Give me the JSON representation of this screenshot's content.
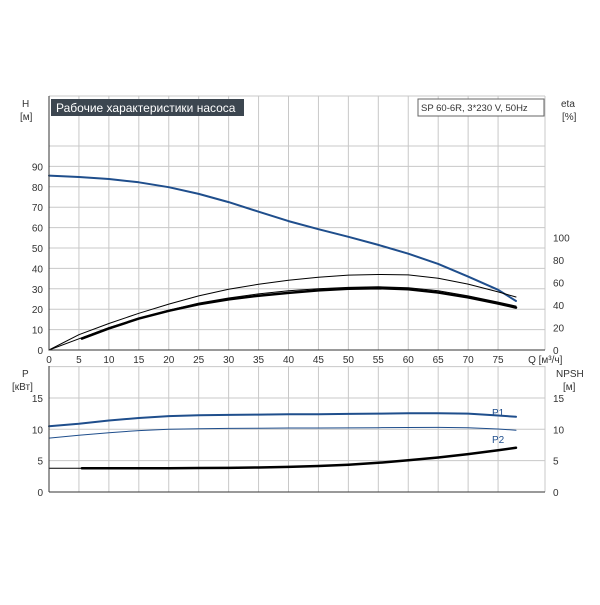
{
  "chart_data": {
    "type": "line",
    "title": "Рабочие характеристики насоса",
    "subtitle": "SP 60-6R, 3*230 V, 50Hz",
    "grid": true,
    "colors": {
      "blue": "#1f4e8c",
      "black": "#000000",
      "title_bg": "#3c4650"
    },
    "top_panel": {
      "ylabel_left": [
        "H",
        "[м]"
      ],
      "ylabel_right": [
        "eta",
        "[%]"
      ],
      "xlabel": "Q [м³/ч]",
      "xlim": [
        0,
        80
      ],
      "x_ticks": [
        "0",
        "5",
        "10",
        "15",
        "20",
        "25",
        "30",
        "35",
        "40",
        "45",
        "50",
        "55",
        "60",
        "65",
        "70",
        "75"
      ],
      "ylim": [
        0,
        100
      ],
      "y_ticks_left": [
        "0",
        "10",
        "20",
        "30",
        "40",
        "50",
        "60",
        "70",
        "80",
        "90"
      ],
      "y_ticks_right": [
        "0",
        "20",
        "40",
        "60",
        "80",
        "100"
      ],
      "series": [
        {
          "color": "blue",
          "width": 2,
          "x": [
            0,
            5,
            10,
            15,
            20,
            25,
            30,
            35,
            40,
            45,
            50,
            55,
            60,
            65,
            70,
            75,
            78
          ],
          "y": [
            85.5,
            84.8,
            83.8,
            82.2,
            79.8,
            76.5,
            72.5,
            67.8,
            63.2,
            59.2,
            55.5,
            51.5,
            47.2,
            42.2,
            36,
            29.5,
            24
          ]
        },
        {
          "color": "black",
          "width": 1,
          "x": [
            0,
            5,
            10,
            15,
            20,
            25,
            30,
            35,
            40,
            45,
            50,
            55,
            60,
            65,
            70,
            75,
            78
          ],
          "y": [
            0,
            7.5,
            13,
            18,
            22.5,
            26.5,
            29.8,
            32.2,
            34.2,
            35.7,
            36.7,
            37,
            36.8,
            35.2,
            32.3,
            28.5,
            26
          ]
        },
        {
          "color": "black",
          "width": 2.5,
          "x": [
            5.5,
            10,
            15,
            20,
            25,
            30,
            35,
            40,
            45,
            50,
            55,
            60,
            65,
            70,
            75,
            78
          ],
          "y": [
            5.6,
            10.6,
            15.4,
            19.2,
            22.4,
            24.8,
            26.6,
            28,
            29.2,
            30,
            30.3,
            29.8,
            28.2,
            25.8,
            22.8,
            20.8
          ]
        },
        {
          "color": "black",
          "width": 1,
          "x": [
            0,
            5,
            10,
            15,
            20,
            25,
            30,
            35,
            40,
            45,
            50,
            55,
            60,
            65,
            70,
            75,
            78
          ],
          "y": [
            0,
            5.5,
            11,
            15.5,
            19.5,
            23,
            25.5,
            27.5,
            29,
            30,
            30.7,
            31,
            30.5,
            29,
            26.5,
            23.5,
            21.5
          ]
        }
      ]
    },
    "bottom_panel": {
      "ylabel_left": [
        "P",
        "[кВт]"
      ],
      "ylabel_right": [
        "NPSH",
        "[м]"
      ],
      "ylim": [
        0,
        20
      ],
      "y_ticks_left": [
        "0",
        "5",
        "10",
        "15"
      ],
      "y_ticks_right": [
        "0",
        "5",
        "10",
        "15"
      ],
      "series": [
        {
          "name": "P1",
          "color": "blue",
          "width": 2,
          "x": [
            0,
            5,
            10,
            15,
            20,
            25,
            30,
            35,
            40,
            45,
            50,
            55,
            60,
            65,
            70,
            75,
            78
          ],
          "y": [
            10.5,
            10.9,
            11.4,
            11.8,
            12.1,
            12.25,
            12.3,
            12.35,
            12.4,
            12.4,
            12.45,
            12.5,
            12.55,
            12.55,
            12.5,
            12.2,
            12
          ]
        },
        {
          "name": "P2",
          "color": "blue",
          "width": 1,
          "x": [
            0,
            5,
            10,
            15,
            20,
            25,
            30,
            35,
            40,
            45,
            50,
            55,
            60,
            65,
            70,
            75,
            78
          ],
          "y": [
            8.6,
            9.05,
            9.45,
            9.8,
            10,
            10.1,
            10.15,
            10.18,
            10.2,
            10.2,
            10.22,
            10.25,
            10.28,
            10.3,
            10.25,
            10.05,
            9.85
          ]
        },
        {
          "name": "NPSH",
          "color": "black",
          "width": 2.5,
          "x": [
            5.5,
            10,
            15,
            20,
            25,
            30,
            35,
            40,
            45,
            50,
            55,
            60,
            65,
            70,
            75,
            78
          ],
          "y": [
            3.8,
            3.8,
            3.8,
            3.8,
            3.82,
            3.85,
            3.9,
            4,
            4.15,
            4.35,
            4.65,
            5.05,
            5.5,
            6.05,
            6.65,
            7.05
          ]
        },
        {
          "color": "black",
          "width": 1,
          "x": [
            0,
            5.5
          ],
          "y": [
            3.8,
            3.8
          ]
        }
      ]
    }
  }
}
